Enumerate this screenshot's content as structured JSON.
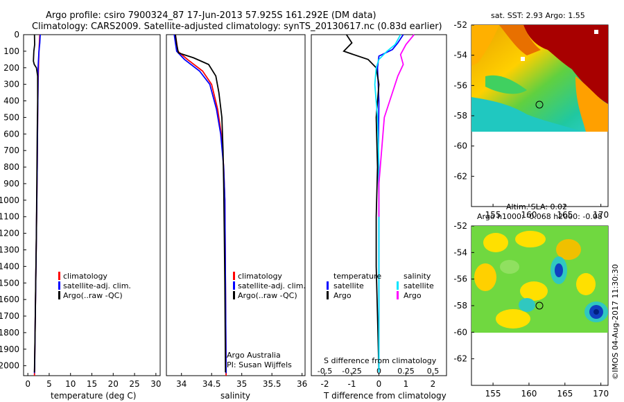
{
  "figure": {
    "title_line1": "Argo profile: csiro 7900324_87 17-Jun-2013 57.925S 161.292E (DM data)",
    "title_line2": "Climatology: CARS2009. Satellite-adjusted climatology: synTS_20130617.nc (0.83d earlier)",
    "sst_title": "sat. SST: 2.93 Argo: 1.55",
    "sla_title_line1": "Altim. SLA: 0.02",
    "sla_title_line2": "Argo h1000: -0.068 h2000: -0.08",
    "credit": "©IMOS 04-Aug-2017 11:30:30",
    "annotation_line1": "Argo Australia",
    "annotation_line2": "PI: Susan Wijffels",
    "diff_top_xlabel": "S difference from climatology",
    "legend_temperature_header": "temperature",
    "legend_salinity_header": "salinity"
  },
  "colors": {
    "climatology": "#ff0000",
    "satellite": "#0000ff",
    "argo": "#000000",
    "sat_salinity": "#00e5ff",
    "argo_salinity": "#ff00ff",
    "map_high": "#a80000",
    "map_mid": "#ffee00",
    "map_low": "#00c8c8"
  },
  "legends": {
    "profile": [
      "climatology",
      "satellite-adj. clim.",
      "Argo(..raw -QC)"
    ],
    "diff_temperature": [
      "satellite",
      "Argo"
    ],
    "diff_salinity": [
      "satellite",
      "Argo"
    ]
  },
  "chart_data": [
    {
      "type": "line",
      "panel": "temperature",
      "xlabel": "temperature (deg C)",
      "ylabel": "",
      "xlim": [
        -1,
        31
      ],
      "ylim": [
        2060,
        0
      ],
      "xticks": [
        "0",
        "5",
        "10",
        "15",
        "20",
        "25",
        "30"
      ],
      "yticks": [
        "0",
        "100",
        "200",
        "300",
        "400",
        "500",
        "600",
        "700",
        "800",
        "900",
        "1000",
        "1100",
        "1200",
        "1300",
        "1400",
        "1500",
        "1600",
        "1700",
        "1800",
        "1900",
        "2000"
      ],
      "series": [
        {
          "name": "climatology",
          "color": "#ff0000",
          "points": [
            [
              2.8,
              0
            ],
            [
              2.6,
              100
            ],
            [
              2.5,
              200
            ],
            [
              2.4,
              300
            ],
            [
              2.3,
              500
            ],
            [
              2.2,
              800
            ],
            [
              2.05,
              1100
            ],
            [
              1.9,
              1400
            ],
            [
              1.75,
              1700
            ],
            [
              1.6,
              2000
            ],
            [
              1.55,
              2060
            ]
          ]
        },
        {
          "name": "satellite-adj. clim.",
          "color": "#0000ff",
          "points": [
            [
              2.9,
              0
            ],
            [
              2.8,
              50
            ],
            [
              2.6,
              100
            ],
            [
              2.4,
              200
            ],
            [
              2.4,
              300
            ],
            [
              2.3,
              500
            ],
            [
              2.2,
              800
            ],
            [
              2.05,
              1100
            ],
            [
              1.9,
              1400
            ],
            [
              1.75,
              1700
            ],
            [
              1.6,
              2000
            ],
            [
              1.55,
              2045
            ]
          ]
        },
        {
          "name": "Argo(..raw -QC)",
          "color": "#000000",
          "points": [
            [
              1.55,
              0
            ],
            [
              1.6,
              60
            ],
            [
              1.4,
              100
            ],
            [
              1.3,
              160
            ],
            [
              1.5,
              180
            ],
            [
              2.0,
              200
            ],
            [
              2.3,
              250
            ],
            [
              2.3,
              400
            ],
            [
              2.2,
              600
            ],
            [
              2.1,
              900
            ],
            [
              2.0,
              1200
            ],
            [
              1.85,
              1500
            ],
            [
              1.7,
              1800
            ],
            [
              1.55,
              2040
            ]
          ]
        }
      ]
    },
    {
      "type": "line",
      "panel": "salinity",
      "xlabel": "salinity",
      "ylabel": "",
      "xlim": [
        33.75,
        36.05
      ],
      "ylim": [
        2060,
        0
      ],
      "xticks": [
        "34",
        "34.5",
        "35",
        "35.5",
        "36"
      ],
      "series": [
        {
          "name": "climatology",
          "color": "#ff0000",
          "points": [
            [
              33.9,
              0
            ],
            [
              33.92,
              50
            ],
            [
              33.94,
              100
            ],
            [
              34.1,
              150
            ],
            [
              34.35,
              220
            ],
            [
              34.5,
              300
            ],
            [
              34.6,
              450
            ],
            [
              34.66,
              600
            ],
            [
              34.7,
              800
            ],
            [
              34.72,
              1000
            ],
            [
              34.73,
              1500
            ],
            [
              34.74,
              2060
            ]
          ]
        },
        {
          "name": "satellite-adj. clim.",
          "color": "#0000ff",
          "points": [
            [
              33.88,
              0
            ],
            [
              33.9,
              50
            ],
            [
              33.92,
              100
            ],
            [
              34.05,
              150
            ],
            [
              34.3,
              220
            ],
            [
              34.47,
              300
            ],
            [
              34.58,
              450
            ],
            [
              34.65,
              600
            ],
            [
              34.7,
              800
            ],
            [
              34.72,
              1000
            ],
            [
              34.73,
              1500
            ],
            [
              34.74,
              2045
            ]
          ]
        },
        {
          "name": "Argo(..raw -QC)",
          "color": "#000000",
          "points": [
            [
              33.9,
              0
            ],
            [
              33.92,
              60
            ],
            [
              33.95,
              110
            ],
            [
              34.2,
              140
            ],
            [
              34.45,
              180
            ],
            [
              34.57,
              250
            ],
            [
              34.62,
              350
            ],
            [
              34.67,
              500
            ],
            [
              34.69,
              700
            ],
            [
              34.7,
              900
            ],
            [
              34.71,
              1200
            ],
            [
              34.72,
              1500
            ],
            [
              34.73,
              2040
            ]
          ]
        }
      ]
    },
    {
      "type": "line",
      "panel": "difference",
      "xlabel": "T difference from climatology",
      "xlabel_top": "S difference from climatology",
      "xlim": [
        -2.5,
        2.5
      ],
      "ylim": [
        2060,
        0
      ],
      "xticks": [
        "-2",
        "-1",
        "0",
        "1",
        "2"
      ],
      "xticks_top": [
        "-0.5",
        "-0.25",
        "0",
        "0.25",
        "0.5"
      ],
      "series": [
        {
          "name": "temperature satellite",
          "color": "#0000ff",
          "points": [
            [
              0.9,
              0
            ],
            [
              0.7,
              50
            ],
            [
              0.5,
              90
            ],
            [
              0.0,
              130
            ],
            [
              -0.05,
              200
            ],
            [
              0.0,
              400
            ],
            [
              -0.02,
              700
            ],
            [
              0.0,
              1000
            ],
            [
              0.0,
              1500
            ],
            [
              0.0,
              2040
            ]
          ]
        },
        {
          "name": "temperature Argo",
          "color": "#000000",
          "points": [
            [
              -1.2,
              0
            ],
            [
              -1.0,
              50
            ],
            [
              -1.3,
              100
            ],
            [
              -0.4,
              150
            ],
            [
              -0.1,
              200
            ],
            [
              0.0,
              300
            ],
            [
              -0.1,
              500
            ],
            [
              -0.05,
              800
            ],
            [
              -0.1,
              1100
            ],
            [
              -0.1,
              1400
            ],
            [
              -0.05,
              1700
            ],
            [
              0.0,
              2040
            ]
          ]
        },
        {
          "name": "salinity satellite",
          "color": "#00e5ff",
          "points": [
            [
              0.8,
              0
            ],
            [
              0.6,
              60
            ],
            [
              0.3,
              100
            ],
            [
              0.0,
              150
            ],
            [
              -0.1,
              200
            ],
            [
              -0.15,
              300
            ],
            [
              -0.05,
              500
            ],
            [
              0.0,
              800
            ],
            [
              0.0,
              1200
            ],
            [
              0.0,
              2040
            ]
          ]
        },
        {
          "name": "salinity Argo",
          "color": "#ff00ff",
          "points": [
            [
              1.3,
              0
            ],
            [
              1.0,
              60
            ],
            [
              0.8,
              120
            ],
            [
              0.9,
              180
            ],
            [
              0.7,
              250
            ],
            [
              0.5,
              350
            ],
            [
              0.2,
              500
            ],
            [
              0.1,
              700
            ],
            [
              0.0,
              900
            ],
            [
              0.0,
              1100
            ]
          ]
        }
      ]
    },
    {
      "type": "heatmap",
      "panel": "SST map",
      "xlim": [
        152,
        171
      ],
      "ylim": [
        -64,
        -52
      ],
      "xticks": [
        "155",
        "160",
        "165",
        "170"
      ],
      "yticks": [
        "-52",
        "-54",
        "-56",
        "-58",
        "-60",
        "-62"
      ],
      "data_extent_lat": [
        -60,
        -52
      ],
      "argo_position": [
        161.292,
        -57.925
      ]
    },
    {
      "type": "heatmap",
      "panel": "SLA map",
      "xlim": [
        152,
        171
      ],
      "ylim": [
        -64,
        -52
      ],
      "xticks": [
        "155",
        "160",
        "165",
        "170"
      ],
      "yticks": [
        "-52",
        "-54",
        "-56",
        "-58",
        "-60",
        "-62"
      ],
      "data_extent_lat": [
        -60,
        -52
      ],
      "argo_position": [
        161.292,
        -57.925
      ]
    }
  ]
}
